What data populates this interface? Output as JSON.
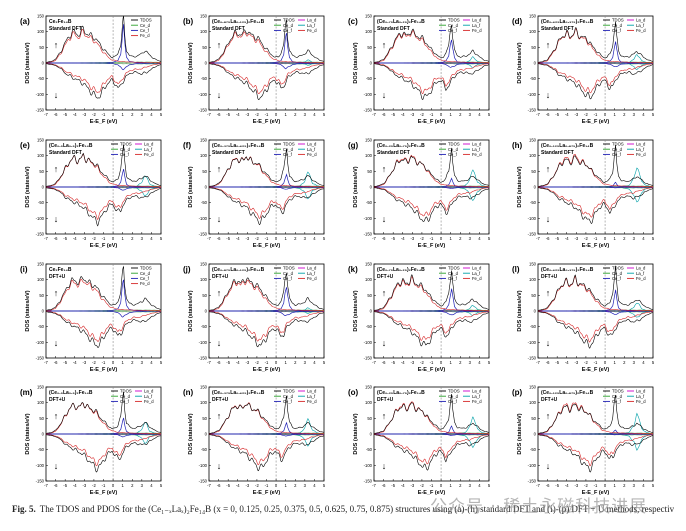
{
  "colors": {
    "TDOS": "#000000",
    "Ce_d": "#2ca02c",
    "Ce_f": "#1f1fb4",
    "La_d": "#cc00cc",
    "La_f": "#00a0a8",
    "Fe_d": "#d62728",
    "fermi": "#888888"
  },
  "chart_data": {
    "type": "line",
    "layout": "4x4 grid of density-of-states panels",
    "xlabel": "E-E_F (eV)",
    "ylabel": "DOS (states/eV)",
    "xlim": [
      -7,
      5
    ],
    "ylim": [
      -150,
      150
    ],
    "xticks": [
      "-7",
      "-6",
      "-5",
      "-4",
      "-3",
      "-2",
      "-1",
      "0",
      "1",
      "2",
      "3",
      "4",
      "5"
    ],
    "yticks": [
      "-150",
      "-100",
      "-50",
      "0",
      "50",
      "100",
      "150"
    ],
    "fermi_level": 0,
    "spin_up_arrow": "↑",
    "spin_down_arrow": "↓",
    "panels": [
      {
        "label": "(a)",
        "formula": "Ce₂Fe₁₄B",
        "method": "Standard DFT",
        "legend": [
          "TDOS",
          "Ce_d",
          "Ce_f",
          "Fe_d"
        ]
      },
      {
        "label": "(b)",
        "formula": "(Ce₀.₈₇₅La₀.₁₂₅)₂Fe₁₄B",
        "method": "Standard DFT",
        "legend": [
          "TDOS",
          "Ce_d",
          "Ce_f",
          "La_d",
          "La_f",
          "Fe_d"
        ]
      },
      {
        "label": "(c)",
        "formula": "(Ce₀.₇₅La₀.₂₅)₂Fe₁₄B",
        "method": "Standard DFT",
        "legend": [
          "TDOS",
          "Ce_d",
          "Ce_f",
          "La_d",
          "La_f",
          "Fe_d"
        ]
      },
      {
        "label": "(d)",
        "formula": "(Ce₀.₆₂₅La₀.₃₇₅)₂Fe₁₄B",
        "method": "Standard DFT",
        "legend": [
          "TDOS",
          "Ce_d",
          "Ce_f",
          "La_d",
          "La_f",
          "Fe_d"
        ]
      },
      {
        "label": "(e)",
        "formula": "(Ce₀.₅La₀.₅)₂Fe₁₄B",
        "method": "Standard DFT",
        "legend": [
          "TDOS",
          "Ce_d",
          "Ce_f",
          "La_d",
          "La_f",
          "Fe_d"
        ]
      },
      {
        "label": "(f)",
        "formula": "(Ce₀.₃₇₅La₀.₆₂₅)₂Fe₁₄B",
        "method": "Standard DFT",
        "legend": [
          "TDOS",
          "Ce_d",
          "Ce_f",
          "La_d",
          "La_f",
          "Fe_d"
        ]
      },
      {
        "label": "(g)",
        "formula": "(Ce₀.₂₅La₀.₇₅)₂Fe₁₄B",
        "method": "Standard DFT",
        "legend": [
          "TDOS",
          "Ce_d",
          "Ce_f",
          "La_d",
          "La_f",
          "Fe_d"
        ]
      },
      {
        "label": "(h)",
        "formula": "(Ce₀.₁₂₅La₀.₈₇₅)₂Fe₁₄B",
        "method": "Standard DFT",
        "legend": [
          "TDOS",
          "Ce_d",
          "Ce_f",
          "La_d",
          "La_f",
          "Fe_d"
        ]
      },
      {
        "label": "(i)",
        "formula": "Ce₂Fe₁₄B",
        "method": "DFT+U",
        "legend": [
          "TDOS",
          "Ce_d",
          "Ce_f",
          "Fe_d"
        ]
      },
      {
        "label": "(j)",
        "formula": "(Ce₀.₈₇₅La₀.₁₂₅)₂Fe₁₄B",
        "method": "DFT+U",
        "legend": [
          "TDOS",
          "Ce_d",
          "Ce_f",
          "La_d",
          "La_f",
          "Fe_d"
        ]
      },
      {
        "label": "(k)",
        "formula": "(Ce₀.₇₅La₀.₂₅)₂Fe₁₄B",
        "method": "DFT+U",
        "legend": [
          "TDOS",
          "Ce_d",
          "Ce_f",
          "La_d",
          "La_f",
          "Fe_d"
        ]
      },
      {
        "label": "(l)",
        "formula": "(Ce₀.₆₂₅La₀.₃₇₅)₂Fe₁₄B",
        "method": "DFT+U",
        "legend": [
          "TDOS",
          "Ce_d",
          "Ce_f",
          "La_d",
          "La_f",
          "Fe_d"
        ]
      },
      {
        "label": "(m)",
        "formula": "(Ce₀.₅La₀.₅)₂Fe₁₄B",
        "method": "DFT+U",
        "legend": [
          "TDOS",
          "Ce_d",
          "Ce_f",
          "La_d",
          "La_f",
          "Fe_d"
        ]
      },
      {
        "label": "(n)",
        "formula": "(Ce₀.₃₇₅La₀.₆₂₅)₂Fe₁₄B",
        "method": "DFT+U",
        "legend": [
          "TDOS",
          "Ce_d",
          "Ce_f",
          "La_d",
          "La_f",
          "Fe_d"
        ]
      },
      {
        "label": "(o)",
        "formula": "(Ce₀.₂₅La₀.₇₅)₂Fe₁₄B",
        "method": "DFT+U",
        "legend": [
          "TDOS",
          "Ce_d",
          "Ce_f",
          "La_d",
          "La_f",
          "Fe_d"
        ]
      },
      {
        "label": "(p)",
        "formula": "(Ce₀.₁₂₅La₀.₈₇₅)₂Fe₁₄B",
        "method": "DFT+U",
        "legend": [
          "TDOS",
          "Ce_d",
          "Ce_f",
          "La_d",
          "La_f",
          "Fe_d"
        ]
      }
    ],
    "series_shapes": {
      "TDOS_up": [
        [
          -7,
          2
        ],
        [
          -6.5,
          5
        ],
        [
          -6,
          12
        ],
        [
          -5.6,
          30
        ],
        [
          -5.2,
          50
        ],
        [
          -4.9,
          70
        ],
        [
          -4.6,
          85
        ],
        [
          -4.3,
          95
        ],
        [
          -4,
          100
        ],
        [
          -3.7,
          90
        ],
        [
          -3.4,
          95
        ],
        [
          -3.1,
          110
        ],
        [
          -2.8,
          95
        ],
        [
          -2.5,
          90
        ],
        [
          -2.2,
          85
        ],
        [
          -1.9,
          80
        ],
        [
          -1.6,
          70
        ],
        [
          -1.3,
          55
        ],
        [
          -1,
          45
        ],
        [
          -0.7,
          35
        ],
        [
          -0.4,
          25
        ],
        [
          -0.1,
          18
        ],
        [
          0.2,
          20
        ],
        [
          0.5,
          30
        ],
        [
          0.8,
          60
        ],
        [
          1.0,
          120
        ],
        [
          1.1,
          140
        ],
        [
          1.2,
          90
        ],
        [
          1.4,
          40
        ],
        [
          1.7,
          25
        ],
        [
          2,
          20
        ],
        [
          2.5,
          22
        ],
        [
          3,
          30
        ],
        [
          3.3,
          40
        ],
        [
          3.5,
          35
        ],
        [
          4,
          20
        ],
        [
          4.5,
          10
        ],
        [
          5,
          5
        ]
      ],
      "TDOS_down": [
        [
          -7,
          -2
        ],
        [
          -6.5,
          -5
        ],
        [
          -6,
          -8
        ],
        [
          -5.6,
          -15
        ],
        [
          -5.2,
          -25
        ],
        [
          -4.9,
          -35
        ],
        [
          -4.6,
          -40
        ],
        [
          -4.3,
          -45
        ],
        [
          -4,
          -50
        ],
        [
          -3.7,
          -55
        ],
        [
          -3.4,
          -60
        ],
        [
          -3.1,
          -65
        ],
        [
          -2.8,
          -75
        ],
        [
          -2.5,
          -85
        ],
        [
          -2.2,
          -95
        ],
        [
          -1.9,
          -105
        ],
        [
          -1.6,
          -110
        ],
        [
          -1.3,
          -100
        ],
        [
          -1,
          -85
        ],
        [
          -0.7,
          -70
        ],
        [
          -0.4,
          -60
        ],
        [
          -0.1,
          -55
        ],
        [
          0.2,
          -65
        ],
        [
          0.5,
          -80
        ],
        [
          0.8,
          -75
        ],
        [
          1.0,
          -60
        ],
        [
          1.3,
          -45
        ],
        [
          1.7,
          -35
        ],
        [
          2,
          -30
        ],
        [
          2.5,
          -30
        ],
        [
          3,
          -35
        ],
        [
          3.5,
          -30
        ],
        [
          4,
          -20
        ],
        [
          4.5,
          -10
        ],
        [
          5,
          -5
        ]
      ],
      "Fe_d_up": [
        [
          -7,
          1
        ],
        [
          -6.5,
          3
        ],
        [
          -6,
          8
        ],
        [
          -5.6,
          25
        ],
        [
          -5.2,
          45
        ],
        [
          -4.9,
          62
        ],
        [
          -4.6,
          78
        ],
        [
          -4.3,
          88
        ],
        [
          -4,
          92
        ],
        [
          -3.7,
          82
        ],
        [
          -3.4,
          88
        ],
        [
          -3.1,
          100
        ],
        [
          -2.8,
          88
        ],
        [
          -2.5,
          82
        ],
        [
          -2.2,
          76
        ],
        [
          -1.9,
          70
        ],
        [
          -1.6,
          60
        ],
        [
          -1.3,
          45
        ],
        [
          -1,
          35
        ],
        [
          -0.7,
          25
        ],
        [
          -0.4,
          15
        ],
        [
          -0.1,
          10
        ],
        [
          0.2,
          8
        ],
        [
          0.5,
          6
        ],
        [
          0.8,
          5
        ],
        [
          1.2,
          4
        ],
        [
          2,
          3
        ],
        [
          3,
          2
        ],
        [
          4,
          1
        ],
        [
          5,
          1
        ]
      ],
      "Fe_d_down": [
        [
          -7,
          -1
        ],
        [
          -6.5,
          -3
        ],
        [
          -6,
          -6
        ],
        [
          -5.6,
          -12
        ],
        [
          -5.2,
          -20
        ],
        [
          -4.9,
          -28
        ],
        [
          -4.6,
          -32
        ],
        [
          -4.3,
          -36
        ],
        [
          -4,
          -40
        ],
        [
          -3.7,
          -44
        ],
        [
          -3.4,
          -48
        ],
        [
          -3.1,
          -52
        ],
        [
          -2.8,
          -60
        ],
        [
          -2.5,
          -70
        ],
        [
          -2.2,
          -80
        ],
        [
          -1.9,
          -88
        ],
        [
          -1.6,
          -92
        ],
        [
          -1.3,
          -82
        ],
        [
          -1,
          -70
        ],
        [
          -0.7,
          -55
        ],
        [
          -0.4,
          -48
        ],
        [
          -0.1,
          -45
        ],
        [
          0.2,
          -55
        ],
        [
          0.5,
          -68
        ],
        [
          0.8,
          -62
        ],
        [
          1.0,
          -48
        ],
        [
          1.3,
          -35
        ],
        [
          1.7,
          -26
        ],
        [
          2,
          -22
        ],
        [
          2.5,
          -20
        ],
        [
          3,
          -18
        ],
        [
          3.5,
          -12
        ],
        [
          4,
          -8
        ],
        [
          4.5,
          -4
        ],
        [
          5,
          -2
        ]
      ],
      "Ce_f_up": [
        [
          -7,
          0
        ],
        [
          -1,
          0
        ],
        [
          0,
          2
        ],
        [
          0.5,
          8
        ],
        [
          0.8,
          30
        ],
        [
          1.0,
          90
        ],
        [
          1.1,
          110
        ],
        [
          1.2,
          70
        ],
        [
          1.4,
          20
        ],
        [
          1.7,
          5
        ],
        [
          2.5,
          1
        ],
        [
          5,
          0
        ]
      ],
      "Ce_f_down": [
        [
          -7,
          0
        ],
        [
          -1,
          0
        ],
        [
          0,
          -2
        ],
        [
          0.5,
          -6
        ],
        [
          0.8,
          -14
        ],
        [
          1.0,
          -20
        ],
        [
          1.3,
          -15
        ],
        [
          1.7,
          -6
        ],
        [
          2.5,
          -2
        ],
        [
          5,
          0
        ]
      ],
      "La_f_up": [
        [
          -7,
          0
        ],
        [
          1.5,
          0
        ],
        [
          2.5,
          3
        ],
        [
          3.0,
          15
        ],
        [
          3.3,
          38
        ],
        [
          3.5,
          30
        ],
        [
          3.8,
          10
        ],
        [
          4.3,
          3
        ],
        [
          5,
          0
        ]
      ],
      "La_f_down": [
        [
          -7,
          0
        ],
        [
          1.5,
          0
        ],
        [
          2.5,
          -4
        ],
        [
          3.0,
          -14
        ],
        [
          3.3,
          -30
        ],
        [
          3.5,
          -24
        ],
        [
          3.8,
          -10
        ],
        [
          4.3,
          -3
        ],
        [
          5,
          0
        ]
      ],
      "Ce_d_up": [
        [
          -7,
          0
        ],
        [
          -3,
          1
        ],
        [
          0,
          2
        ],
        [
          2,
          3
        ],
        [
          4,
          3
        ],
        [
          5,
          2
        ]
      ],
      "Ce_d_down": [
        [
          -7,
          0
        ],
        [
          -3,
          -1
        ],
        [
          0,
          -2
        ],
        [
          2,
          -3
        ],
        [
          4,
          -3
        ],
        [
          5,
          -2
        ]
      ],
      "La_d_up": [
        [
          -7,
          0
        ],
        [
          -3,
          1
        ],
        [
          0,
          1
        ],
        [
          2,
          2
        ],
        [
          4,
          2
        ],
        [
          5,
          1
        ]
      ],
      "La_d_down": [
        [
          -7,
          0
        ],
        [
          -3,
          -1
        ],
        [
          0,
          -1
        ],
        [
          2,
          -2
        ],
        [
          4,
          -2
        ],
        [
          5,
          -1
        ]
      ]
    }
  },
  "caption": {
    "label": "Fig. 5.",
    "text": "The TDOS and PDOS for the (Ce₁₋ₓLaₓ)₂Fe₁₄B (x = 0, 0.125, 0.25, 0.375, 0.5, 0.625, 0.75, 0.875) structures using (a)-(h) standard DFT and (i)-(p) DFT + U methods, respectively."
  },
  "watermark": "公众号 · 稀土永磁科技进展"
}
